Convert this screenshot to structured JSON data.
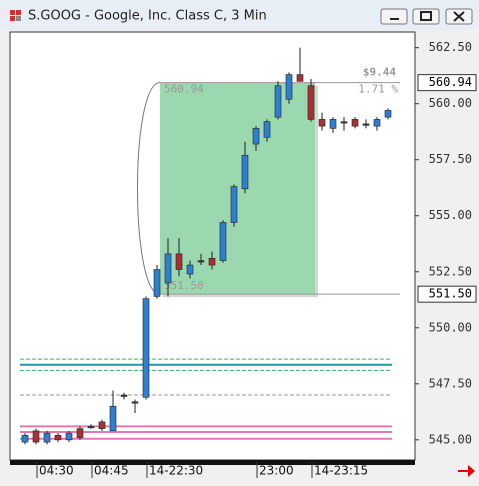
{
  "window": {
    "title": "S.GOOG - Google, Inc. Class C, 3 Min"
  },
  "chart_data": {
    "type": "candlestick",
    "categories": [
      null,
      "04:30",
      null,
      null,
      null,
      null,
      "04:45",
      null,
      null,
      null,
      null,
      "14-22:30",
      null,
      null,
      null,
      null,
      null,
      null,
      null,
      null,
      null,
      "23:00",
      null,
      null,
      null,
      null,
      "14-23:15",
      null,
      null,
      null,
      null,
      null,
      null,
      null
    ],
    "open": [
      544.9,
      545.4,
      544.9,
      545.2,
      545.0,
      545.5,
      545.6,
      545.8,
      545.4,
      547.0,
      546.7,
      546.9,
      551.4,
      552.0,
      553.3,
      552.4,
      553.0,
      553.1,
      553.0,
      554.7,
      556.2,
      558.2,
      558.5,
      559.4,
      560.2,
      561.3,
      560.8,
      559.3,
      558.9,
      559.2,
      559.3,
      559.1,
      559.0,
      559.4
    ],
    "high": [
      545.3,
      545.5,
      545.4,
      545.3,
      545.4,
      545.6,
      545.7,
      545.9,
      547.2,
      547.1,
      546.8,
      551.4,
      552.8,
      554.0,
      554.0,
      553.0,
      553.3,
      553.4,
      554.8,
      556.4,
      558.3,
      559.0,
      559.3,
      561.0,
      561.4,
      562.5,
      561.1,
      559.6,
      559.4,
      559.4,
      559.4,
      559.3,
      559.4,
      559.8
    ],
    "low": [
      544.8,
      544.8,
      544.8,
      544.9,
      544.9,
      545.0,
      545.5,
      545.4,
      545.4,
      546.8,
      546.2,
      546.8,
      551.3,
      551.4,
      552.3,
      552.2,
      552.8,
      552.6,
      552.9,
      554.5,
      556.0,
      557.9,
      558.3,
      559.3,
      560.0,
      561.0,
      559.2,
      558.8,
      558.7,
      558.8,
      558.9,
      558.9,
      558.8,
      559.3
    ],
    "close": [
      545.2,
      544.9,
      545.3,
      545.0,
      545.3,
      545.1,
      545.6,
      545.5,
      546.5,
      547.0,
      546.7,
      551.3,
      552.6,
      553.3,
      552.6,
      552.8,
      553.0,
      552.8,
      554.7,
      556.3,
      557.7,
      558.9,
      559.2,
      560.8,
      561.3,
      561.0,
      559.3,
      559.0,
      559.3,
      559.2,
      559.0,
      559.1,
      559.3,
      559.7
    ],
    "up_color": "#2f7fd0",
    "down_color": "#a83232",
    "flat_color": "#333333",
    "ylim": [
      544.1,
      563.2
    ],
    "yticks": [
      {
        "value": 545,
        "label": "545.00"
      },
      {
        "value": 547.5,
        "label": "547.50"
      },
      {
        "value": 550,
        "label": "550.00"
      },
      {
        "value": 552.5,
        "label": "552.50"
      },
      {
        "value": 555,
        "label": "555.00"
      },
      {
        "value": 557.5,
        "label": "557.50"
      },
      {
        "value": 560,
        "label": "560.00"
      },
      {
        "value": 562.5,
        "label": "562.50"
      }
    ],
    "levels": [
      {
        "value": 548.6,
        "color": "#3cb371",
        "dash": true
      },
      {
        "value": 548.35,
        "color": "#1e9aa0",
        "dash": false
      },
      {
        "value": 548.1,
        "color": "#3cb371",
        "dash": true
      },
      {
        "value": 547.0,
        "color": "#999999",
        "dash": true
      },
      {
        "value": 545.6,
        "color": "#e07ab0",
        "dash": false
      },
      {
        "value": 545.35,
        "color": "#e07ab0",
        "dash": false
      },
      {
        "value": 545.05,
        "color": "#e07ab0",
        "dash": false
      }
    ],
    "measure": {
      "high": 560.94,
      "low": {
        "value": 551.5,
        "label": "551.50"
      },
      "change": {
        "value": 9.44,
        "label": "$9.44"
      },
      "percent": {
        "value": 1.71,
        "label": "1.71 %"
      },
      "color": "#9bd8b0"
    }
  }
}
